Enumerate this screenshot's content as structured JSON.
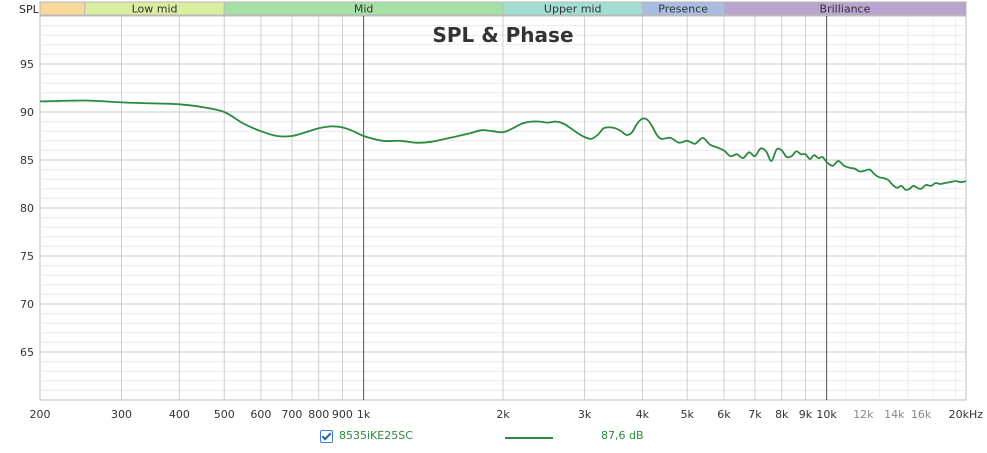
{
  "chart_data": {
    "type": "line",
    "title": "SPL & Phase",
    "xscale": "log",
    "xlim": [
      200,
      20000
    ],
    "ylim": [
      60,
      100
    ],
    "yticks": [
      65,
      70,
      75,
      80,
      85,
      90,
      95
    ],
    "xticks": [
      {
        "v": 200,
        "label": "200",
        "major": false
      },
      {
        "v": 300,
        "label": "300",
        "major": false
      },
      {
        "v": 400,
        "label": "400",
        "major": false
      },
      {
        "v": 500,
        "label": "500",
        "major": false
      },
      {
        "v": 600,
        "label": "600",
        "major": false
      },
      {
        "v": 700,
        "label": "700",
        "major": false
      },
      {
        "v": 800,
        "label": "800",
        "major": false
      },
      {
        "v": 900,
        "label": "900",
        "major": false
      },
      {
        "v": 1000,
        "label": "1k",
        "major": true
      },
      {
        "v": 2000,
        "label": "2k",
        "major": false
      },
      {
        "v": 3000,
        "label": "3k",
        "major": false
      },
      {
        "v": 4000,
        "label": "4k",
        "major": false
      },
      {
        "v": 5000,
        "label": "5k",
        "major": false
      },
      {
        "v": 6000,
        "label": "6k",
        "major": false
      },
      {
        "v": 7000,
        "label": "7k",
        "major": false
      },
      {
        "v": 8000,
        "label": "8k",
        "major": false
      },
      {
        "v": 9000,
        "label": "9k",
        "major": false
      },
      {
        "v": 10000,
        "label": "10k",
        "major": true
      },
      {
        "v": 12000,
        "label": "12k",
        "major": false
      },
      {
        "v": 14000,
        "label": "14k",
        "major": false
      },
      {
        "v": 16000,
        "label": "16k",
        "major": false
      },
      {
        "v": 20000,
        "label": "20kHz",
        "major": false
      }
    ],
    "band_axis_label": "SPL",
    "bands": [
      {
        "label": "",
        "from": 200,
        "to": 250,
        "color": "#f9d89c"
      },
      {
        "label": "Low mid",
        "from": 250,
        "to": 500,
        "color": "#d9eea0"
      },
      {
        "label": "Mid",
        "from": 500,
        "to": 2000,
        "color": "#a6e0a6"
      },
      {
        "label": "Upper mid",
        "from": 2000,
        "to": 4000,
        "color": "#a3ded3"
      },
      {
        "label": "Presence",
        "from": 4000,
        "to": 6000,
        "color": "#a9bde3"
      },
      {
        "label": "Brilliance",
        "from": 6000,
        "to": 20000,
        "color": "#b9a3cf"
      }
    ],
    "series": [
      {
        "name": "8535iKE25SC",
        "color": "#2b8a3e",
        "x": [
          200,
          250,
          300,
          350,
          400,
          450,
          500,
          550,
          600,
          650,
          700,
          750,
          800,
          850,
          900,
          950,
          1000,
          1100,
          1200,
          1300,
          1400,
          1500,
          1600,
          1700,
          1800,
          1900,
          2000,
          2100,
          2200,
          2300,
          2400,
          2500,
          2600,
          2700,
          2800,
          2900,
          3000,
          3100,
          3200,
          3300,
          3400,
          3500,
          3600,
          3700,
          3800,
          3900,
          4000,
          4100,
          4200,
          4300,
          4400,
          4600,
          4800,
          5000,
          5200,
          5400,
          5600,
          5800,
          6000,
          6200,
          6400,
          6600,
          6800,
          7000,
          7200,
          7400,
          7600,
          7800,
          8000,
          8200,
          8400,
          8600,
          8800,
          9000,
          9200,
          9400,
          9600,
          9800,
          10000,
          10300,
          10600,
          10900,
          11200,
          11500,
          11800,
          12100,
          12400,
          12700,
          13000,
          13300,
          13600,
          13900,
          14200,
          14500,
          14800,
          15100,
          15400,
          15700,
          16000,
          16400,
          16800,
          17200,
          17600,
          18000,
          18500,
          19000,
          19500,
          20000
        ],
        "y": [
          91.1,
          91.2,
          91.0,
          90.9,
          90.8,
          90.5,
          90.0,
          88.8,
          88.0,
          87.5,
          87.5,
          87.9,
          88.3,
          88.5,
          88.4,
          88.0,
          87.5,
          87.0,
          87.0,
          86.8,
          86.9,
          87.2,
          87.5,
          87.8,
          88.1,
          88.0,
          87.9,
          88.3,
          88.8,
          89.0,
          89.0,
          88.9,
          89.0,
          88.8,
          88.3,
          87.8,
          87.4,
          87.2,
          87.6,
          88.3,
          88.4,
          88.3,
          88.0,
          87.6,
          87.9,
          88.8,
          89.3,
          89.2,
          88.5,
          87.6,
          87.2,
          87.3,
          86.8,
          87.0,
          86.7,
          87.3,
          86.6,
          86.3,
          86.0,
          85.4,
          85.6,
          85.2,
          85.8,
          85.4,
          86.2,
          85.9,
          84.9,
          86.1,
          86.0,
          85.3,
          85.4,
          85.9,
          85.6,
          85.6,
          85.1,
          85.5,
          85.2,
          85.3,
          84.8,
          84.4,
          84.9,
          84.4,
          84.2,
          84.1,
          83.8,
          83.9,
          84.0,
          83.5,
          83.2,
          83.1,
          82.9,
          82.4,
          82.1,
          82.3,
          81.9,
          82.0,
          82.3,
          82.1,
          82.0,
          82.4,
          82.3,
          82.6,
          82.5,
          82.6,
          82.7,
          82.8,
          82.7,
          82.8
        ]
      }
    ]
  },
  "legend": {
    "name": "8535iKE25SC",
    "value": "87,6 dB"
  }
}
